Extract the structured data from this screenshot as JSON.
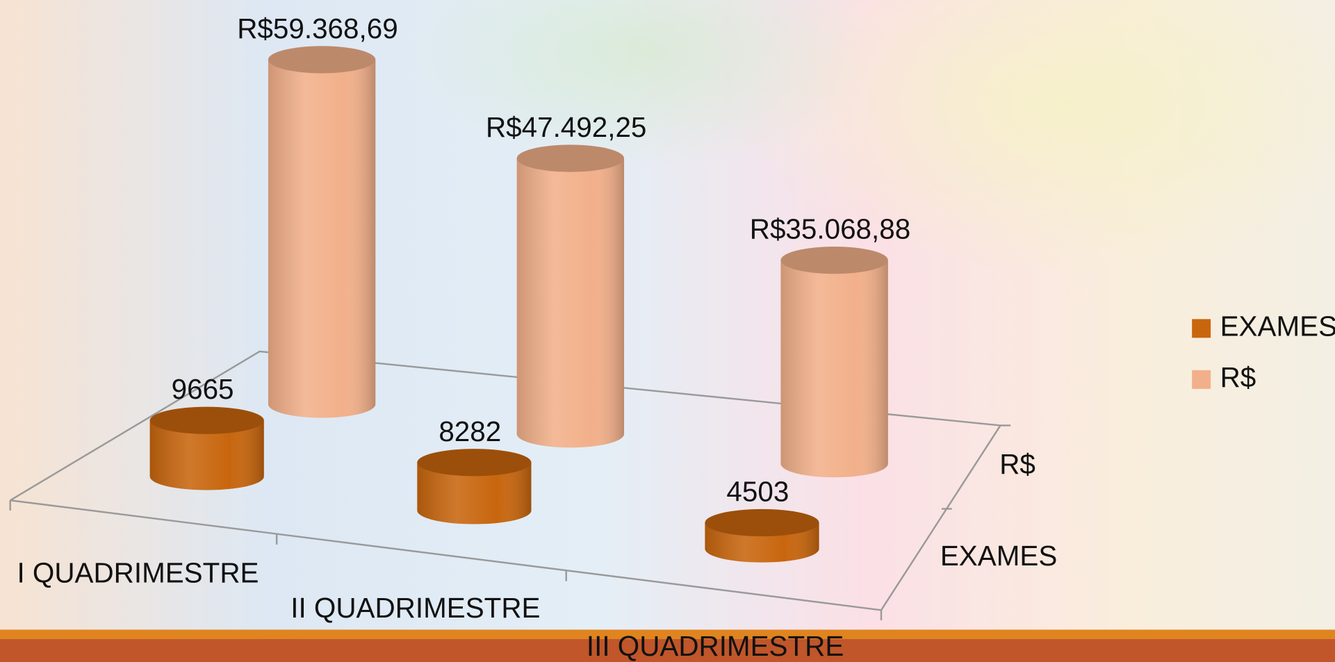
{
  "chart_data": {
    "type": "cylinder3d",
    "categories": [
      "I QUADRIMESTRE",
      "II QUADRIMESTRE",
      "III QUADRIMESTRE"
    ],
    "series": [
      {
        "name": "EXAMES",
        "color": "#c8660e",
        "values": [
          9665,
          8282,
          4503
        ]
      },
      {
        "name": "R$",
        "color": "#f2b08a",
        "values": [
          59368.69,
          47492.25,
          35068.88
        ],
        "value_labels": [
          "R$59.368,69",
          "R$47.492,25",
          "R$35.068,88"
        ]
      }
    ],
    "legend": "right"
  }
}
